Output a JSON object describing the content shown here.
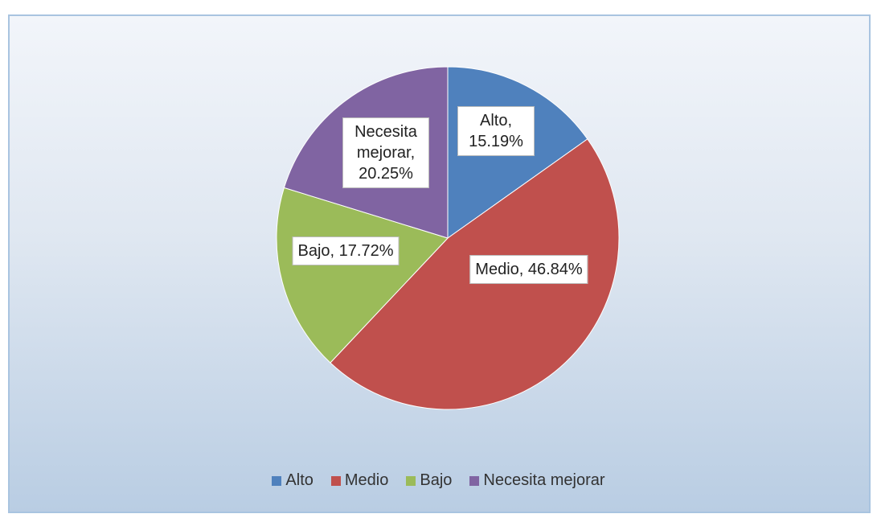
{
  "chart_data": {
    "type": "pie",
    "categories": [
      "Alto",
      "Medio",
      "Bajo",
      "Necesita mejorar"
    ],
    "values": [
      15.19,
      46.84,
      17.72,
      20.25
    ],
    "value_labels": [
      "Alto, 15.19%",
      "Medio, 46.84%",
      "Bajo, 17.72%",
      "Necesita mejorar, 20.25%"
    ],
    "colors": [
      "#4f81bd",
      "#c0504d",
      "#9bbb59",
      "#8064a2"
    ],
    "legend": "bottom"
  }
}
